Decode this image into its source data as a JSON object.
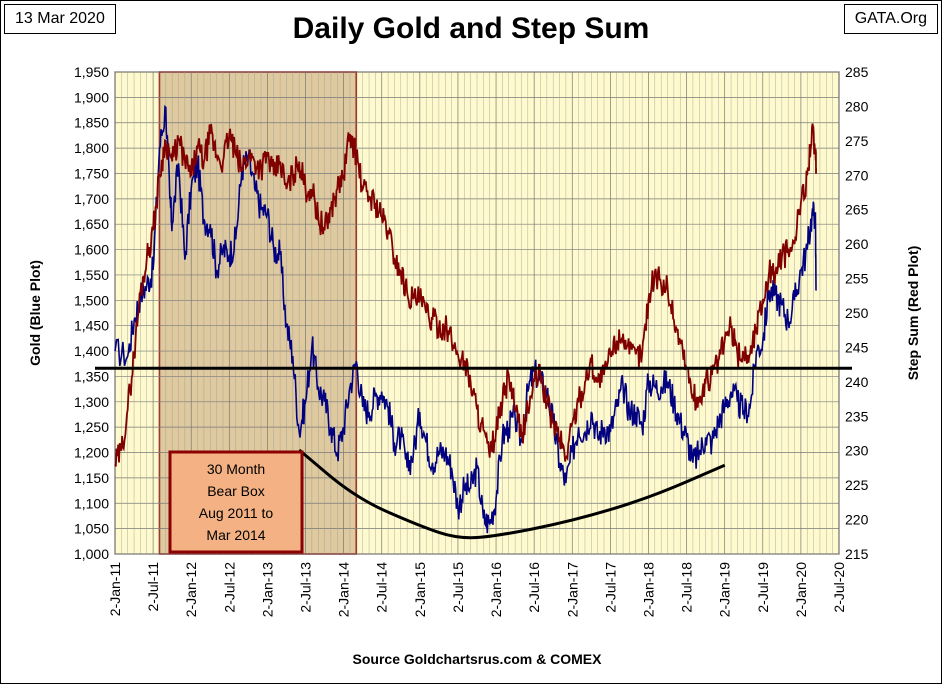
{
  "header": {
    "date_label": "13 Mar 2020",
    "source_label": "GATA.Org",
    "title": "Daily Gold and Step Sum"
  },
  "footer": {
    "source": "Source Goldchartsrus.com & COMEX"
  },
  "annotation": {
    "lines": [
      "30 Month",
      "Bear Box",
      "Aug 2011 to",
      "Mar 2014"
    ]
  },
  "colors": {
    "plot_bg": "#FFFACD",
    "gold_series": "#000080",
    "step_sum_series": "#800000",
    "bear_box": "#D2B48C",
    "annotation_bg": "#F4B183",
    "annotation_border": "#8B0000"
  },
  "chart_data": {
    "type": "line",
    "title": "Daily Gold and Step Sum",
    "xlabel": "Source Goldchartsrus.com & COMEX",
    "ylabel": "Gold (Blue Plot)",
    "y2label": "Step Sum (Red Plot)",
    "x_ticks": [
      "2-Jan-11",
      "2-Jul-11",
      "2-Jan-12",
      "2-Jul-12",
      "2-Jan-13",
      "2-Jul-13",
      "2-Jan-14",
      "2-Jul-14",
      "2-Jan-15",
      "2-Jul-15",
      "2-Jan-16",
      "2-Jul-16",
      "2-Jan-17",
      "2-Jul-17",
      "2-Jan-18",
      "2-Jul-18",
      "2-Jan-19",
      "2-Jul-19",
      "2-Jan-20",
      "2-Jul-20"
    ],
    "y_ticks": [
      "1,000",
      "1,050",
      "1,100",
      "1,150",
      "1,200",
      "1,250",
      "1,300",
      "1,350",
      "1,400",
      "1,450",
      "1,500",
      "1,550",
      "1,600",
      "1,650",
      "1,700",
      "1,750",
      "1,800",
      "1,850",
      "1,900",
      "1,950"
    ],
    "y2_ticks": [
      "215",
      "220",
      "225",
      "230",
      "235",
      "240",
      "245",
      "250",
      "255",
      "260",
      "265",
      "270",
      "275",
      "280",
      "285"
    ],
    "ylim": [
      1000,
      1950
    ],
    "y2lim": [
      215,
      285
    ],
    "grid": true,
    "reference_line": {
      "axis": "y",
      "value": 1366
    },
    "shaded_region": {
      "label": "30 Month Bear Box",
      "x_start": "Aug 2011",
      "x_end": "Mar 2014"
    },
    "series": [
      {
        "name": "Gold (Blue Plot)",
        "axis": "left",
        "color": "#000080",
        "points": [
          [
            "2011-01",
            1400
          ],
          [
            "2011-03",
            1390
          ],
          [
            "2011-04",
            1460
          ],
          [
            "2011-05",
            1510
          ],
          [
            "2011-06",
            1530
          ],
          [
            "2011-07",
            1560
          ],
          [
            "2011-08",
            1800
          ],
          [
            "2011-09",
            1880
          ],
          [
            "2011-09-20",
            1700
          ],
          [
            "2011-10",
            1650
          ],
          [
            "2011-11",
            1770
          ],
          [
            "2011-12",
            1580
          ],
          [
            "2012-01",
            1720
          ],
          [
            "2012-02",
            1770
          ],
          [
            "2012-03",
            1660
          ],
          [
            "2012-04",
            1650
          ],
          [
            "2012-05",
            1560
          ],
          [
            "2012-06",
            1600
          ],
          [
            "2012-07",
            1590
          ],
          [
            "2012-08",
            1620
          ],
          [
            "2012-09",
            1760
          ],
          [
            "2012-10",
            1780
          ],
          [
            "2012-11",
            1720
          ],
          [
            "2012-12",
            1680
          ],
          [
            "2013-01",
            1670
          ],
          [
            "2013-02",
            1600
          ],
          [
            "2013-03",
            1590
          ],
          [
            "2013-04",
            1450
          ],
          [
            "2013-05",
            1390
          ],
          [
            "2013-06",
            1240
          ],
          [
            "2013-07",
            1300
          ],
          [
            "2013-08",
            1410
          ],
          [
            "2013-09",
            1330
          ],
          [
            "2013-10",
            1300
          ],
          [
            "2013-11",
            1250
          ],
          [
            "2013-12",
            1200
          ],
          [
            "2014-01",
            1250
          ],
          [
            "2014-02",
            1330
          ],
          [
            "2014-03",
            1380
          ],
          [
            "2014-04",
            1290
          ],
          [
            "2014-05",
            1280
          ],
          [
            "2014-06",
            1310
          ],
          [
            "2014-07",
            1320
          ],
          [
            "2014-08",
            1290
          ],
          [
            "2014-09",
            1220
          ],
          [
            "2014-10",
            1230
          ],
          [
            "2014-11",
            1170
          ],
          [
            "2014-12",
            1200
          ],
          [
            "2015-01",
            1280
          ],
          [
            "2015-02",
            1220
          ],
          [
            "2015-03",
            1180
          ],
          [
            "2015-04",
            1200
          ],
          [
            "2015-05",
            1200
          ],
          [
            "2015-06",
            1170
          ],
          [
            "2015-07",
            1090
          ],
          [
            "2015-08",
            1130
          ],
          [
            "2015-09",
            1130
          ],
          [
            "2015-10",
            1170
          ],
          [
            "2015-11",
            1070
          ],
          [
            "2015-12",
            1060
          ],
          [
            "2016-01",
            1110
          ],
          [
            "2016-02",
            1230
          ],
          [
            "2016-03",
            1250
          ],
          [
            "2016-04",
            1270
          ],
          [
            "2016-05",
            1220
          ],
          [
            "2016-06",
            1320
          ],
          [
            "2016-07",
            1360
          ],
          [
            "2016-08",
            1340
          ],
          [
            "2016-09",
            1320
          ],
          [
            "2016-10",
            1260
          ],
          [
            "2016-11",
            1180
          ],
          [
            "2016-12",
            1140
          ],
          [
            "2017-01",
            1200
          ],
          [
            "2017-02",
            1250
          ],
          [
            "2017-03",
            1240
          ],
          [
            "2017-04",
            1280
          ],
          [
            "2017-05",
            1230
          ],
          [
            "2017-06",
            1250
          ],
          [
            "2017-07",
            1240
          ],
          [
            "2017-08",
            1290
          ],
          [
            "2017-09",
            1330
          ],
          [
            "2017-10",
            1280
          ],
          [
            "2017-11",
            1280
          ],
          [
            "2017-12",
            1250
          ],
          [
            "2018-01",
            1340
          ],
          [
            "2018-02",
            1330
          ],
          [
            "2018-03",
            1330
          ],
          [
            "2018-04",
            1340
          ],
          [
            "2018-05",
            1300
          ],
          [
            "2018-06",
            1260
          ],
          [
            "2018-07",
            1230
          ],
          [
            "2018-08",
            1180
          ],
          [
            "2018-09",
            1200
          ],
          [
            "2018-10",
            1230
          ],
          [
            "2018-11",
            1220
          ],
          [
            "2018-12",
            1260
          ],
          [
            "2019-01",
            1290
          ],
          [
            "2019-02",
            1320
          ],
          [
            "2019-03",
            1300
          ],
          [
            "2019-04",
            1280
          ],
          [
            "2019-05",
            1290
          ],
          [
            "2019-06",
            1400
          ],
          [
            "2019-07",
            1420
          ],
          [
            "2019-08",
            1520
          ],
          [
            "2019-09",
            1510
          ],
          [
            "2019-10",
            1490
          ],
          [
            "2019-11",
            1460
          ],
          [
            "2019-12",
            1500
          ],
          [
            "2020-01",
            1560
          ],
          [
            "2020-02",
            1600
          ],
          [
            "2020-02-24",
            1670
          ],
          [
            "2020-03-09",
            1670
          ],
          [
            "2020-03-13",
            1520
          ]
        ]
      },
      {
        "name": "Step Sum (Red Plot)",
        "axis": "right",
        "color": "#800000",
        "points": [
          [
            "2011-01",
            228
          ],
          [
            "2011-02",
            230
          ],
          [
            "2011-03",
            236
          ],
          [
            "2011-04",
            244
          ],
          [
            "2011-05",
            253
          ],
          [
            "2011-06",
            258
          ],
          [
            "2011-07",
            262
          ],
          [
            "2011-08",
            270
          ],
          [
            "2011-09",
            275
          ],
          [
            "2011-10",
            272
          ],
          [
            "2011-11",
            275
          ],
          [
            "2011-12",
            272
          ],
          [
            "2012-01",
            270
          ],
          [
            "2012-02",
            274
          ],
          [
            "2012-03",
            272
          ],
          [
            "2012-04",
            276
          ],
          [
            "2012-05",
            273
          ],
          [
            "2012-06",
            272
          ],
          [
            "2012-07",
            276
          ],
          [
            "2012-08",
            273
          ],
          [
            "2012-09",
            271
          ],
          [
            "2012-10",
            273
          ],
          [
            "2012-11",
            272
          ],
          [
            "2012-12",
            271
          ],
          [
            "2013-01",
            273
          ],
          [
            "2013-02",
            270
          ],
          [
            "2013-03",
            272
          ],
          [
            "2013-04",
            268
          ],
          [
            "2013-05",
            270
          ],
          [
            "2013-06",
            272
          ],
          [
            "2013-07",
            268
          ],
          [
            "2013-08",
            268
          ],
          [
            "2013-09",
            264
          ],
          [
            "2013-10",
            262
          ],
          [
            "2013-11",
            265
          ],
          [
            "2013-12",
            268
          ],
          [
            "2014-01",
            270
          ],
          [
            "2014-02",
            276
          ],
          [
            "2014-03",
            273
          ],
          [
            "2014-04",
            268
          ],
          [
            "2014-05",
            267
          ],
          [
            "2014-06",
            266
          ],
          [
            "2014-07",
            264
          ],
          [
            "2014-08",
            262
          ],
          [
            "2014-09",
            258
          ],
          [
            "2014-10",
            256
          ],
          [
            "2014-11",
            253
          ],
          [
            "2014-12",
            252
          ],
          [
            "2015-01",
            252
          ],
          [
            "2015-02",
            250
          ],
          [
            "2015-03",
            249
          ],
          [
            "2015-04",
            248
          ],
          [
            "2015-05",
            248
          ],
          [
            "2015-06",
            246
          ],
          [
            "2015-07",
            244
          ],
          [
            "2015-08",
            243
          ],
          [
            "2015-09",
            240
          ],
          [
            "2015-10",
            236
          ],
          [
            "2015-11",
            233
          ],
          [
            "2015-12",
            229
          ],
          [
            "2016-01",
            233
          ],
          [
            "2016-02",
            237
          ],
          [
            "2016-03",
            241
          ],
          [
            "2016-04",
            236
          ],
          [
            "2016-05",
            232
          ],
          [
            "2016-06",
            236
          ],
          [
            "2016-07",
            240
          ],
          [
            "2016-08",
            241
          ],
          [
            "2016-09",
            237
          ],
          [
            "2016-10",
            234
          ],
          [
            "2016-11",
            232
          ],
          [
            "2016-12",
            229
          ],
          [
            "2017-01",
            234
          ],
          [
            "2017-02",
            237
          ],
          [
            "2017-03",
            240
          ],
          [
            "2017-04",
            243
          ],
          [
            "2017-05",
            240
          ],
          [
            "2017-06",
            241
          ],
          [
            "2017-07",
            244
          ],
          [
            "2017-08",
            246
          ],
          [
            "2017-09",
            247
          ],
          [
            "2017-10",
            244
          ],
          [
            "2017-11",
            244
          ],
          [
            "2017-12",
            244
          ],
          [
            "2018-01",
            252
          ],
          [
            "2018-02",
            256
          ],
          [
            "2018-03",
            254
          ],
          [
            "2018-04",
            254
          ],
          [
            "2018-05",
            249
          ],
          [
            "2018-06",
            246
          ],
          [
            "2018-07",
            242
          ],
          [
            "2018-08",
            238
          ],
          [
            "2018-09",
            237
          ],
          [
            "2018-10",
            240
          ],
          [
            "2018-11",
            241
          ],
          [
            "2018-12",
            243
          ],
          [
            "2019-01",
            246
          ],
          [
            "2019-02",
            248
          ],
          [
            "2019-03",
            244
          ],
          [
            "2019-04",
            244
          ],
          [
            "2019-05",
            244
          ],
          [
            "2019-06",
            248
          ],
          [
            "2019-07",
            252
          ],
          [
            "2019-08",
            256
          ],
          [
            "2019-09",
            256
          ],
          [
            "2019-10",
            258
          ],
          [
            "2019-11",
            259
          ],
          [
            "2019-12",
            260
          ],
          [
            "2020-01",
            266
          ],
          [
            "2020-02",
            270
          ],
          [
            "2020-02-24",
            277
          ],
          [
            "2020-03-09",
            273
          ],
          [
            "2020-03-13",
            271
          ]
        ]
      }
    ],
    "trend_curve": {
      "color": "#000000",
      "points": [
        [
          "2013-06",
          1205
        ],
        [
          "2014-03",
          1110
        ],
        [
          "2015-01",
          1055
        ],
        [
          "2015-07",
          1030
        ],
        [
          "2016-01",
          1035
        ],
        [
          "2017-01",
          1065
        ],
        [
          "2018-01",
          1110
        ],
        [
          "2019-01",
          1175
        ]
      ]
    }
  }
}
